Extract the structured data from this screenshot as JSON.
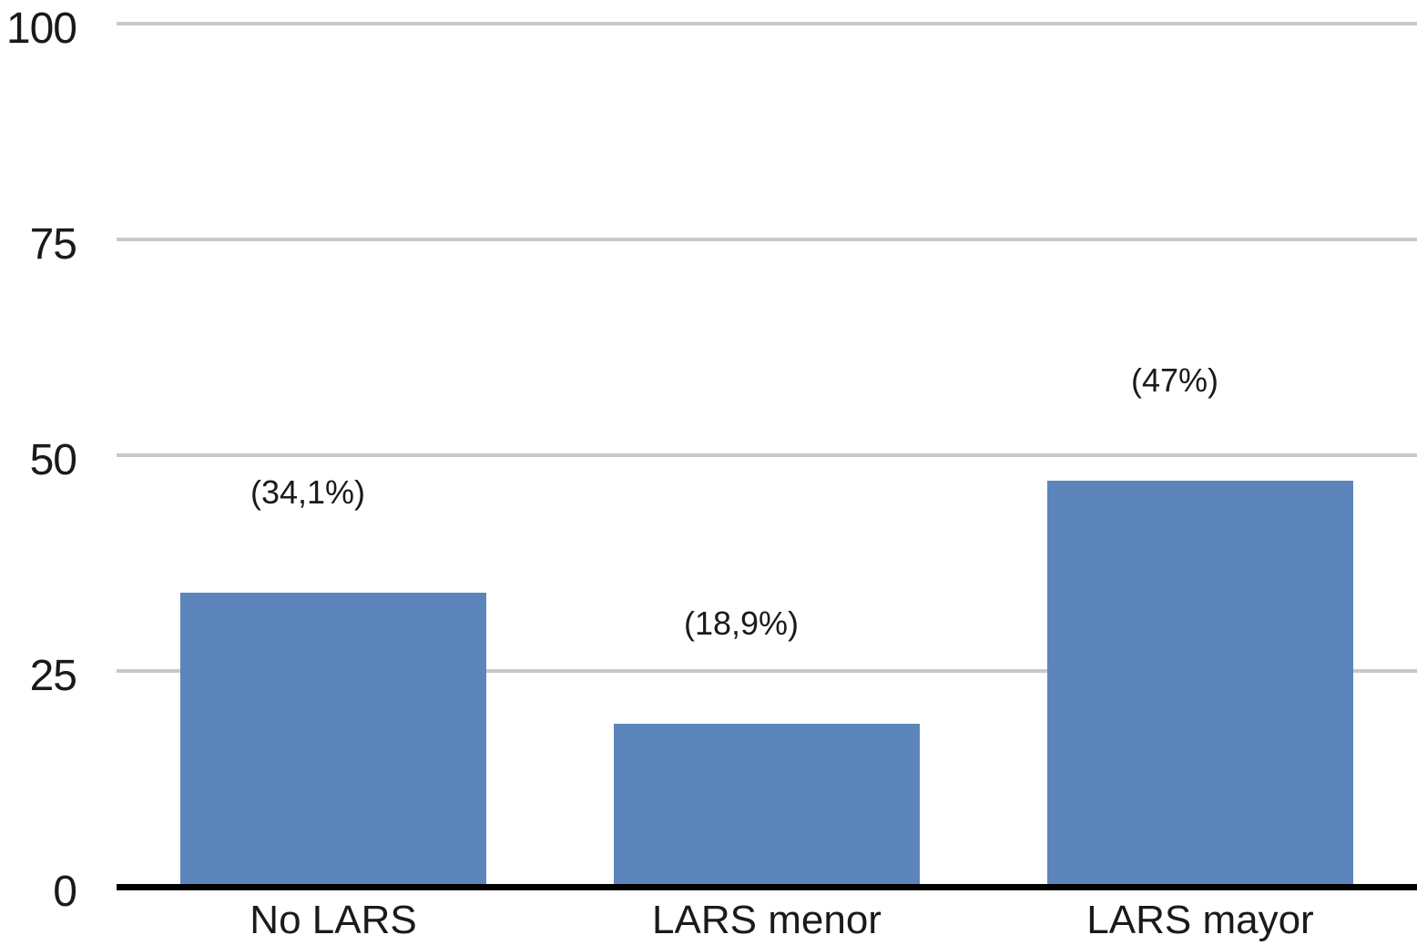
{
  "chart_data": {
    "type": "bar",
    "categories": [
      "No LARS",
      "LARS menor",
      "LARS mayor"
    ],
    "values": [
      34.1,
      18.9,
      47
    ],
    "value_labels": [
      "(34,1%)",
      "(18,9%)",
      "(47%)"
    ],
    "title": "",
    "xlabel": "",
    "ylabel": "",
    "ylim": [
      0,
      100
    ],
    "yticks": [
      0,
      25,
      50,
      75,
      100
    ],
    "grid": true,
    "legend": false,
    "bar_color": "#5c86bb",
    "gridline_color": "#c8c8c8",
    "axis_color": "#000000",
    "text_color": "#1a1a1a"
  }
}
